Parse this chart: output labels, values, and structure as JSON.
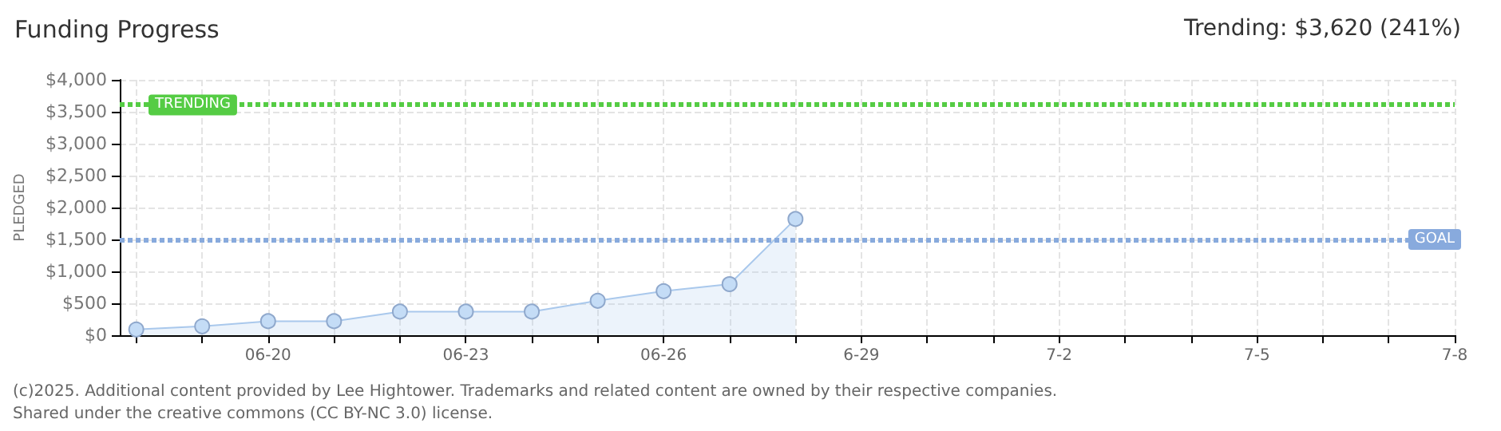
{
  "chart_data": {
    "type": "area",
    "title": "Funding Progress",
    "subtitle": "Trending: $3,620 (241%)",
    "ylabel": "PLEDGED",
    "x": [
      "2025-06-18",
      "2025-06-19",
      "2025-06-20",
      "2025-06-21",
      "2025-06-22",
      "2025-06-23",
      "2025-06-24",
      "2025-06-25",
      "2025-06-26",
      "2025-06-27",
      "2025-06-28"
    ],
    "series": [
      {
        "color": "#a9c8ec",
        "values": [
          90,
          140,
          220,
          220,
          370,
          370,
          370,
          540,
          690,
          800,
          1820
        ]
      }
    ],
    "xlim": [
      "2025-06-17T18:00",
      "2025-07-08"
    ],
    "xticks": [
      {
        "value": "2025-06-18",
        "label": null
      },
      {
        "value": "2025-06-19",
        "label": null
      },
      {
        "value": "2025-06-20",
        "label": "06-20"
      },
      {
        "value": "2025-06-21",
        "label": null
      },
      {
        "value": "2025-06-22",
        "label": null
      },
      {
        "value": "2025-06-23",
        "label": "06-23"
      },
      {
        "value": "2025-06-24",
        "label": null
      },
      {
        "value": "2025-06-25",
        "label": null
      },
      {
        "value": "2025-06-26",
        "label": "06-26"
      },
      {
        "value": "2025-06-27",
        "label": null
      },
      {
        "value": "2025-06-28",
        "label": null
      },
      {
        "value": "2025-06-29",
        "label": "6-29"
      },
      {
        "value": "2025-06-30",
        "label": null
      },
      {
        "value": "2025-07-01",
        "label": null
      },
      {
        "value": "2025-07-02",
        "label": "7-2"
      },
      {
        "value": "2025-07-03",
        "label": null
      },
      {
        "value": "2025-07-04",
        "label": null
      },
      {
        "value": "2025-07-05",
        "label": "7-5"
      },
      {
        "value": "2025-07-06",
        "label": null
      },
      {
        "value": "2025-07-07",
        "label": null
      },
      {
        "value": "2025-07-08",
        "label": "7-8"
      }
    ],
    "ylim": [
      0,
      4000
    ],
    "yticks": [
      {
        "value": 0,
        "label": "$0"
      },
      {
        "value": 500,
        "label": "$500"
      },
      {
        "value": 1000,
        "label": "$1,000"
      },
      {
        "value": 1500,
        "label": "$1,500"
      },
      {
        "value": 2000,
        "label": "$2,000"
      },
      {
        "value": 2500,
        "label": "$2,500"
      },
      {
        "value": 3000,
        "label": "$3,000"
      },
      {
        "value": 3500,
        "label": "$3,500"
      },
      {
        "value": 4000,
        "label": "$4,000"
      }
    ],
    "ref_lines": [
      {
        "axis": "y",
        "value": 3620,
        "label": "TRENDING",
        "color": "#55cc44",
        "line_style": "dotted"
      },
      {
        "axis": "y",
        "value": 1500,
        "label": "GOAL",
        "color": "#88aadd",
        "line_style": "dotted"
      }
    ],
    "annotations": [
      "(c)2025. Additional content provided by Lee Hightower. Trademarks and related content are owned by their respective companies.",
      "Shared under the creative commons (CC BY-NC 3.0) license."
    ],
    "grid": true,
    "marker": "circle"
  }
}
